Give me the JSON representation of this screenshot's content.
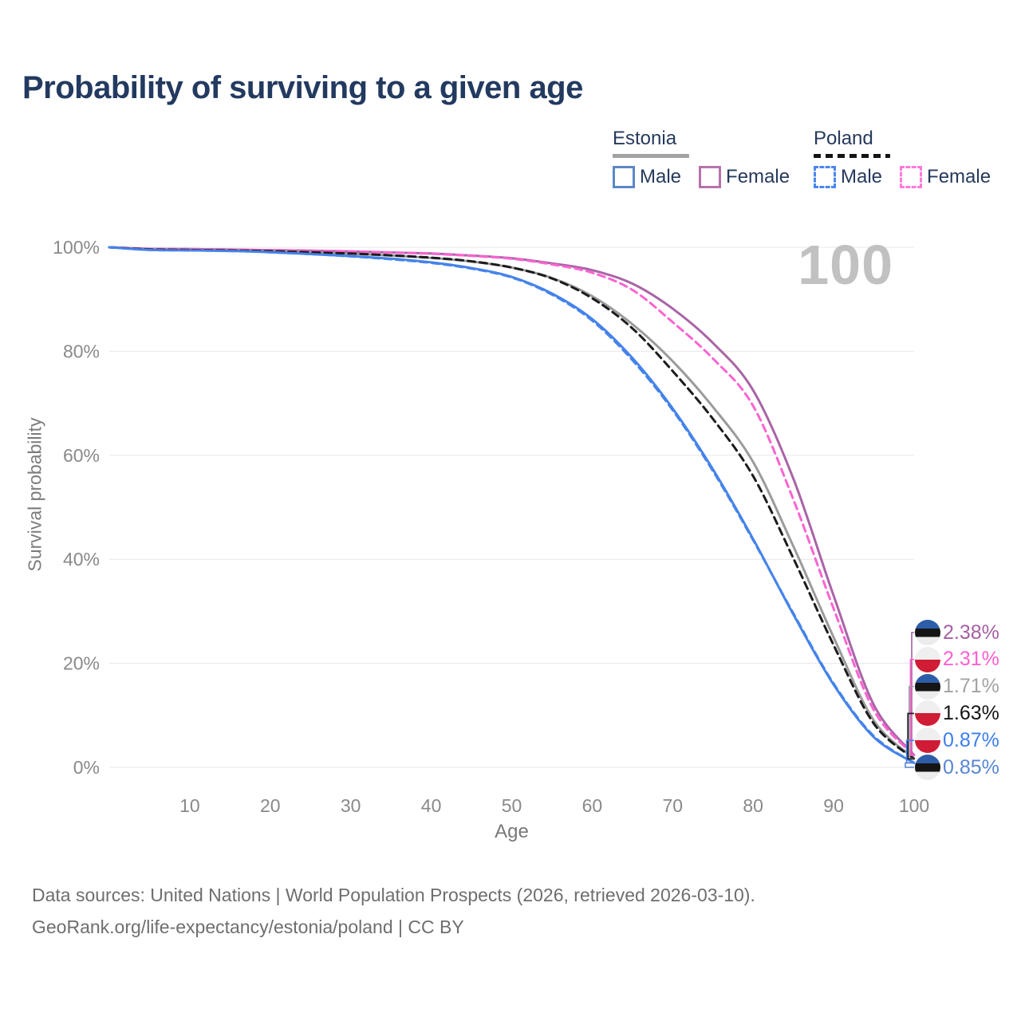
{
  "title": "Probability of surviving to a given age",
  "watermark_age": "100",
  "legend": {
    "groups": [
      {
        "label": "Estonia",
        "line_style": "solid",
        "line_color": "#a2a2a2",
        "items": [
          {
            "label": "Male",
            "color": "#5b87c7",
            "style": "solid"
          },
          {
            "label": "Female",
            "color": "#b573ad",
            "style": "solid"
          }
        ]
      },
      {
        "label": "Poland",
        "line_style": "dashed",
        "line_color": "#141414",
        "items": [
          {
            "label": "Male",
            "color": "#4a86ee",
            "style": "dashed"
          },
          {
            "label": "Female",
            "color": "#ff7bdc",
            "style": "dashed"
          }
        ]
      }
    ]
  },
  "chart_data": {
    "type": "line",
    "title": "Probability of surviving to a given age",
    "xlabel": "Age",
    "ylabel": "Survival probability",
    "xlim": [
      0,
      100
    ],
    "ylim": [
      0,
      100
    ],
    "x_ticks": [
      10,
      20,
      30,
      40,
      50,
      60,
      70,
      80,
      90,
      100
    ],
    "y_ticks": [
      0,
      20,
      40,
      60,
      80,
      100
    ],
    "y_tick_suffix": "%",
    "grid": "horizontal",
    "grid_color": "#e7e7e7",
    "x": [
      0,
      5,
      10,
      15,
      20,
      25,
      30,
      35,
      40,
      45,
      50,
      55,
      60,
      65,
      70,
      75,
      80,
      85,
      90,
      95,
      100
    ],
    "series": [
      {
        "name": "Estonia Female",
        "country": "Estonia",
        "sex": "female",
        "color": "#a964a6",
        "dash": "solid",
        "values": [
          100,
          99.7,
          99.65,
          99.55,
          99.45,
          99.35,
          99.2,
          99.0,
          98.8,
          98.4,
          97.9,
          96.9,
          95.6,
          93.0,
          88.2,
          81.6,
          72.5,
          55.5,
          33.0,
          12.0,
          2.38
        ]
      },
      {
        "name": "Estonia Both sexes",
        "country": "Estonia",
        "sex": "both",
        "color": "#9b9b9b",
        "dash": "solid",
        "values": [
          100,
          99.6,
          99.5,
          99.4,
          99.25,
          99.05,
          98.75,
          98.4,
          97.95,
          97.25,
          96.1,
          94.1,
          90.6,
          85.2,
          78.1,
          69.3,
          58.7,
          42.5,
          25.0,
          9.0,
          1.71
        ]
      },
      {
        "name": "Estonia Male",
        "country": "Estonia",
        "sex": "male",
        "color": "#4583ea",
        "dash": "solid",
        "values": [
          100,
          99.5,
          99.4,
          99.3,
          99.05,
          98.7,
          98.3,
          97.8,
          97.1,
          96.0,
          94.3,
          91.1,
          86.2,
          78.7,
          69.0,
          57.3,
          43.9,
          29.4,
          15.9,
          5.8,
          0.85
        ]
      },
      {
        "name": "Poland Female",
        "country": "Poland",
        "sex": "female",
        "color": "#fb63d2",
        "dash": "dashed",
        "values": [
          100,
          99.7,
          99.65,
          99.55,
          99.45,
          99.35,
          99.2,
          99.0,
          98.75,
          98.35,
          97.8,
          96.7,
          95.1,
          91.8,
          85.6,
          78.6,
          69.5,
          51.5,
          30.5,
          11.0,
          2.31
        ]
      },
      {
        "name": "Poland Both sexes",
        "country": "Poland",
        "sex": "both",
        "color": "#1c1c1c",
        "dash": "dashed",
        "values": [
          100,
          99.6,
          99.5,
          99.4,
          99.25,
          99.05,
          98.8,
          98.45,
          98.0,
          97.3,
          96.1,
          94.0,
          90.2,
          84.4,
          76.2,
          67.0,
          56.0,
          40.2,
          23.5,
          8.4,
          1.63
        ]
      },
      {
        "name": "Poland Male",
        "country": "Poland",
        "sex": "male",
        "color": "#4583ea",
        "dash": "dashed",
        "values": [
          100,
          99.5,
          99.4,
          99.3,
          99.05,
          98.7,
          98.25,
          97.7,
          97.0,
          95.9,
          94.2,
          90.9,
          85.9,
          78.3,
          68.7,
          57.0,
          43.7,
          29.6,
          16.1,
          6.0,
          0.87
        ]
      }
    ],
    "end_labels": [
      {
        "value": "2.38%",
        "numeric": 2.38,
        "series": "Estonia Female",
        "flag": "estonia",
        "color": "#a55fa3"
      },
      {
        "value": "2.31%",
        "numeric": 2.31,
        "series": "Poland Female",
        "flag": "poland",
        "color": "#ff5fd0"
      },
      {
        "value": "1.71%",
        "numeric": 1.71,
        "series": "Estonia Both sexes",
        "flag": "estonia",
        "color": "#a3a3a3"
      },
      {
        "value": "1.63%",
        "numeric": 1.63,
        "series": "Poland Both sexes",
        "flag": "poland",
        "color": "#151515"
      },
      {
        "value": "0.87%",
        "numeric": 0.87,
        "series": "Poland Male",
        "flag": "poland",
        "color": "#3d7ef0"
      },
      {
        "value": "0.85%",
        "numeric": 0.85,
        "series": "Estonia Male",
        "flag": "estonia",
        "color": "#5886d2"
      }
    ]
  },
  "footer": {
    "line1": "Data sources: United Nations | World Population Prospects (2026, retrieved 2026-03-10).",
    "line2": "GeoRank.org/life-expectancy/estonia/poland | CC BY"
  }
}
